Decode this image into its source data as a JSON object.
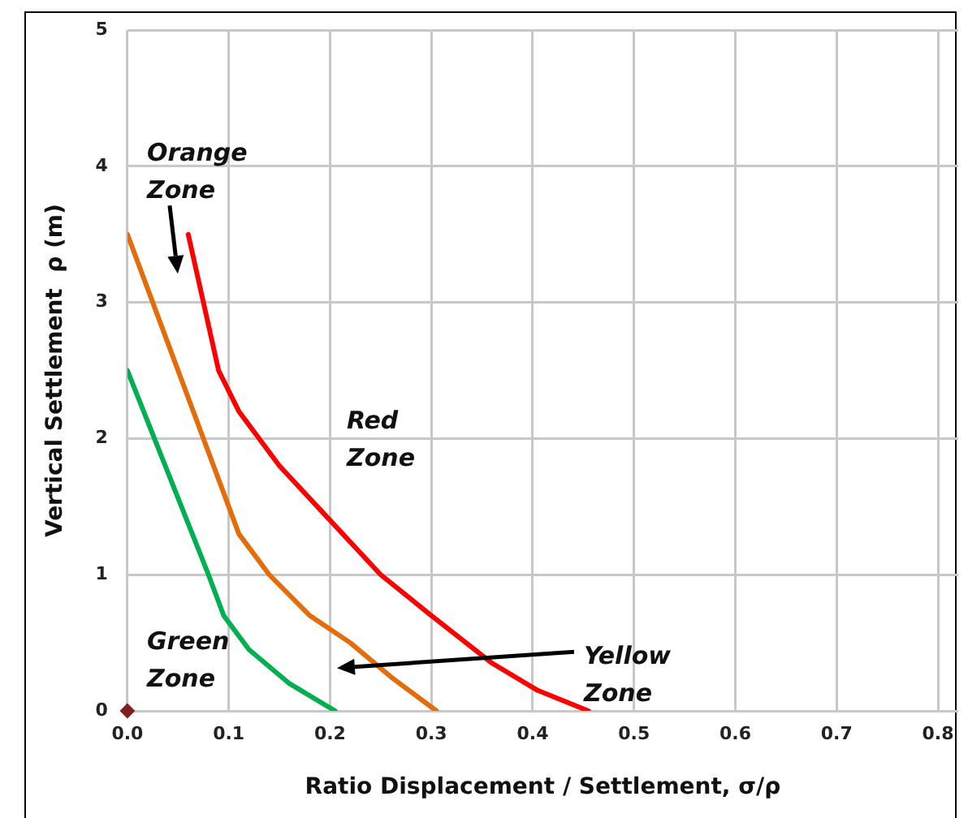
{
  "chart_data": {
    "type": "line",
    "xlabel": "Ratio Displacement / Settlement, σ/ρ",
    "ylabel": "Vertical Settlement  ρ (m)",
    "xlim": [
      0,
      0.82
    ],
    "ylim": [
      0,
      5
    ],
    "xticks": [
      {
        "value": 0,
        "label": "0.0"
      },
      0.1,
      0.2,
      0.3,
      0.4,
      0.5,
      0.6,
      0.7,
      0.8
    ],
    "yticks": [
      0,
      1,
      2,
      3,
      4,
      5
    ],
    "grid": true,
    "legend": false,
    "marker": "none",
    "line_style": "solid",
    "series": [
      {
        "color": "#00b050",
        "x": [
          0,
          0.04,
          0.08,
          0.095,
          0.12,
          0.16,
          0.205
        ],
        "values": [
          2.5,
          1.75,
          1.0,
          0.7,
          0.45,
          0.2,
          0
        ]
      },
      {
        "color": "#e46c0a",
        "x": [
          0,
          0.05,
          0.1,
          0.11,
          0.14,
          0.18,
          0.22,
          0.26,
          0.305
        ],
        "values": [
          3.5,
          2.5,
          1.5,
          1.3,
          1.0,
          0.7,
          0.5,
          0.25,
          0
        ]
      },
      {
        "color": "#ff0000",
        "x": [
          0.06,
          0.075,
          0.09,
          0.11,
          0.15,
          0.2,
          0.25,
          0.3,
          0.36,
          0.405,
          0.455
        ],
        "values": [
          3.5,
          3.0,
          2.5,
          2.2,
          1.8,
          1.4,
          1.0,
          0.7,
          0.35,
          0.15,
          0
        ]
      },
      {
        "type": "scatter",
        "marker": "diamond",
        "color": "#7f1f1f",
        "x": [
          0
        ],
        "values": [
          0
        ]
      }
    ],
    "annotations": [
      "Orange Zone",
      "Red Zone",
      "Green Zone",
      "Yellow Zone"
    ]
  }
}
